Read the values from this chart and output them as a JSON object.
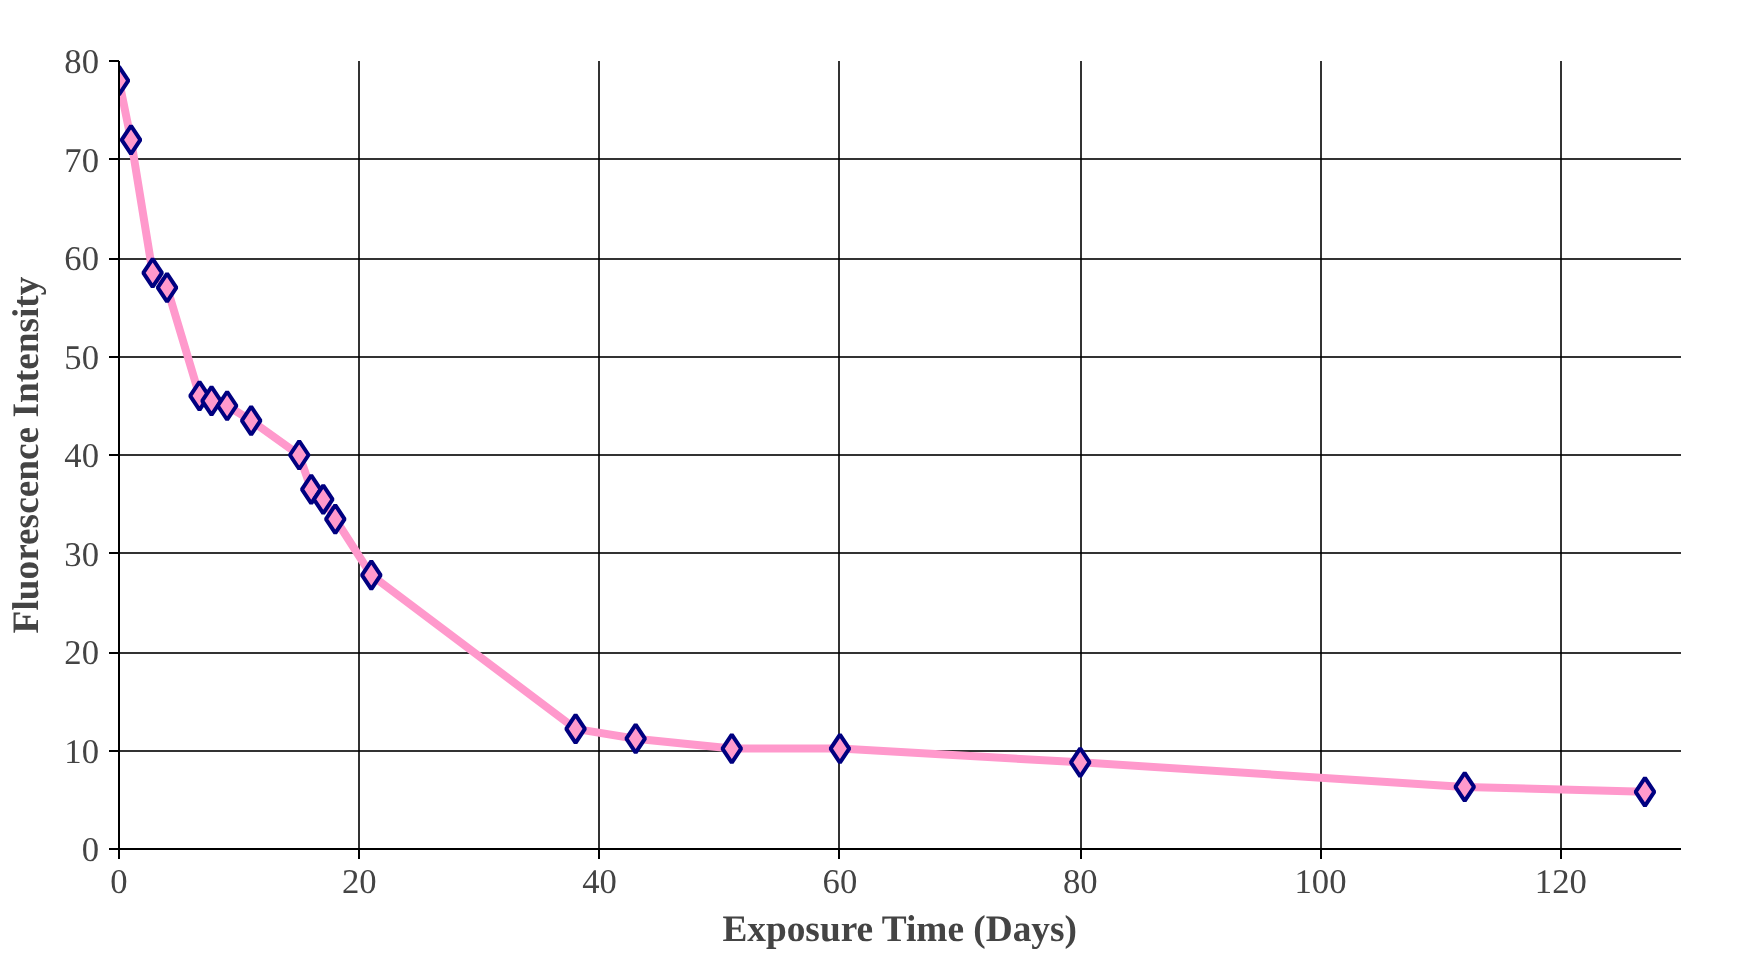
{
  "chart_data": {
    "type": "line",
    "xlabel": "Exposure Time (Days)",
    "ylabel": "Fluorescence Intensity",
    "x": [
      0,
      1,
      2.8,
      4,
      6.7,
      7.7,
      9,
      11,
      15,
      16,
      17,
      18,
      21,
      38,
      43,
      51,
      60,
      80,
      112,
      127
    ],
    "series": [
      {
        "color": "#ff99cc",
        "values": [
          78,
          72,
          58.5,
          57,
          46,
          45.5,
          45,
          43.5,
          40,
          36.5,
          35.5,
          33.5,
          27.8,
          12.2,
          11.2,
          10.2,
          10.2,
          8.8,
          6.3,
          5.8
        ]
      }
    ],
    "marker": "diamond",
    "xlim": [
      0,
      130
    ],
    "ylim": [
      0,
      80
    ],
    "xticks": [
      0,
      20,
      40,
      60,
      80,
      100,
      120
    ],
    "yticks": [
      0,
      10,
      20,
      30,
      40,
      50,
      60,
      70,
      80
    ],
    "grid": true
  }
}
